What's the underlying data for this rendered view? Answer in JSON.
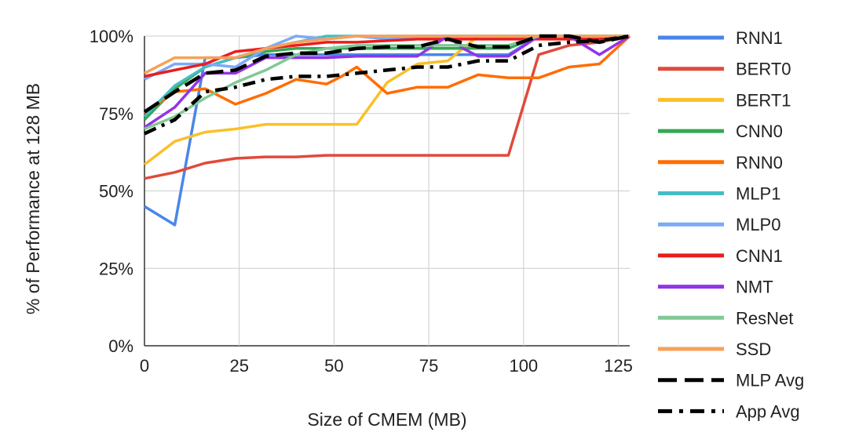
{
  "chart_data": {
    "type": "line",
    "title": "",
    "xlabel": "Size of CMEM (MB)",
    "ylabel": "% of Performance at 128 MB",
    "xlim": [
      0,
      128
    ],
    "ylim": [
      0,
      100
    ],
    "xticks": [
      0,
      25,
      50,
      75,
      100,
      125
    ],
    "yticks": [
      0,
      25,
      50,
      75,
      100
    ],
    "xtick_labels": [
      "0",
      "25",
      "50",
      "75",
      "100",
      "125"
    ],
    "ytick_labels": [
      "0%",
      "25%",
      "50%",
      "75%",
      "100%"
    ],
    "grid": true,
    "legend_position": "right",
    "series": [
      {
        "name": "RNN1",
        "color": "#4a86e8",
        "dash": "solid",
        "x": [
          0,
          8,
          16,
          24,
          32,
          40,
          48,
          56,
          64,
          72,
          80,
          88,
          96,
          104,
          112,
          120,
          128
        ],
        "y": [
          45,
          39,
          93,
          93,
          94,
          94,
          94,
          94,
          94,
          94,
          94,
          94,
          94,
          100,
          100,
          100,
          100
        ]
      },
      {
        "name": "BERT0",
        "color": "#e04a3c",
        "dash": "solid",
        "x": [
          0,
          8,
          16,
          24,
          32,
          40,
          48,
          56,
          64,
          72,
          80,
          88,
          96,
          104,
          112,
          120,
          128
        ],
        "y": [
          54,
          56,
          59,
          60.5,
          61,
          61,
          61.5,
          61.5,
          61.5,
          61.5,
          61.5,
          61.5,
          61.5,
          94,
          97,
          98,
          100
        ]
      },
      {
        "name": "BERT1",
        "color": "#f9c02a",
        "dash": "solid",
        "x": [
          0,
          8,
          16,
          24,
          32,
          40,
          48,
          56,
          64,
          72,
          80,
          88,
          96,
          104,
          112,
          120,
          128
        ],
        "y": [
          58.5,
          66,
          69,
          70,
          71.5,
          71.5,
          71.5,
          71.5,
          85,
          91,
          92,
          100,
          100,
          100,
          100,
          100,
          100
        ]
      },
      {
        "name": "CNN0",
        "color": "#34a853",
        "dash": "solid",
        "x": [
          0,
          8,
          16,
          24,
          32,
          40,
          48,
          56,
          64,
          72,
          80,
          88,
          96,
          104,
          112,
          120,
          128
        ],
        "y": [
          73,
          83,
          90,
          93,
          95,
          96,
          96,
          96,
          96,
          96,
          96,
          96,
          96,
          100,
          100,
          100,
          100
        ]
      },
      {
        "name": "RNN0",
        "color": "#ff6d01",
        "dash": "solid",
        "x": [
          0,
          8,
          16,
          24,
          32,
          40,
          48,
          52,
          56,
          64,
          72,
          80,
          88,
          96,
          104,
          112,
          120,
          128
        ],
        "y": [
          75,
          82,
          83,
          78,
          81.5,
          86,
          84.5,
          87,
          90,
          81.5,
          83.5,
          83.5,
          87.5,
          86.5,
          86.5,
          90,
          91,
          100
        ]
      },
      {
        "name": "MLP1",
        "color": "#46bdc6",
        "dash": "solid",
        "x": [
          0,
          8,
          16,
          24,
          32,
          40,
          48,
          56,
          64,
          72,
          80,
          88,
          96,
          104,
          112,
          120,
          128
        ],
        "y": [
          74,
          84,
          90,
          93,
          96,
          98,
          100,
          100,
          100,
          100,
          100,
          100,
          100,
          100,
          100,
          100,
          100
        ]
      },
      {
        "name": "MLP0",
        "color": "#7baaf7",
        "dash": "solid",
        "x": [
          0,
          8,
          16,
          24,
          32,
          40,
          48,
          56,
          64,
          72,
          80,
          88,
          96,
          104,
          112,
          120,
          128
        ],
        "y": [
          86,
          91,
          91,
          90,
          96,
          100,
          99,
          100,
          99,
          100,
          100,
          100,
          100,
          100,
          100,
          100,
          100
        ]
      },
      {
        "name": "CNN1",
        "color": "#ea1d1d",
        "dash": "solid",
        "x": [
          0,
          8,
          16,
          24,
          32,
          40,
          48,
          56,
          64,
          72,
          80,
          88,
          96,
          104,
          112,
          120,
          128
        ],
        "y": [
          87,
          89,
          91,
          95,
          96,
          97,
          98,
          98,
          98.5,
          99,
          99,
          99,
          99,
          99,
          99,
          99,
          100
        ]
      },
      {
        "name": "NMT",
        "color": "#9334e6",
        "dash": "solid",
        "x": [
          0,
          8,
          16,
          24,
          32,
          40,
          48,
          56,
          64,
          72,
          80,
          84,
          88,
          96,
          104,
          112,
          120,
          128
        ],
        "y": [
          70.5,
          77,
          88,
          88,
          93,
          93,
          93,
          93.5,
          93.5,
          93.5,
          100,
          96,
          93.5,
          93.5,
          100,
          100,
          94,
          100
        ]
      },
      {
        "name": "ResNet",
        "color": "#81c995",
        "dash": "solid",
        "x": [
          0,
          8,
          16,
          24,
          32,
          40,
          48,
          56,
          64,
          72,
          80,
          88,
          96,
          104,
          112,
          120,
          128
        ],
        "y": [
          70,
          74,
          80,
          85,
          89,
          94,
          96,
          97,
          97,
          97,
          97,
          97,
          97,
          100,
          100,
          100,
          100
        ]
      },
      {
        "name": "SSD",
        "color": "#f6a15a",
        "dash": "solid",
        "x": [
          0,
          8,
          16,
          24,
          32,
          40,
          48,
          56,
          64,
          72,
          80,
          88,
          96,
          104,
          112,
          120,
          128
        ],
        "y": [
          88,
          93,
          93,
          93,
          96,
          98,
          99,
          100,
          100,
          100,
          100,
          100,
          100,
          100,
          100,
          100,
          100
        ]
      },
      {
        "name": "MLP Avg",
        "color": "#000000",
        "dash": "dash",
        "x": [
          0,
          8,
          16,
          24,
          32,
          40,
          48,
          56,
          64,
          72,
          80,
          88,
          96,
          104,
          112,
          120,
          128
        ],
        "y": [
          75.5,
          82,
          88,
          89,
          93.5,
          94.5,
          94.5,
          96,
          96.5,
          96.5,
          99,
          96.5,
          96.5,
          100,
          100,
          98,
          100
        ]
      },
      {
        "name": "App Avg",
        "color": "#000000",
        "dash": "dashdot",
        "x": [
          0,
          8,
          16,
          24,
          32,
          40,
          48,
          56,
          64,
          72,
          80,
          88,
          96,
          104,
          112,
          120,
          128
        ],
        "y": [
          68.5,
          73,
          82,
          83.5,
          86,
          87,
          87,
          88,
          89,
          90,
          90,
          92,
          92,
          97,
          98,
          98.5,
          100
        ]
      }
    ]
  }
}
